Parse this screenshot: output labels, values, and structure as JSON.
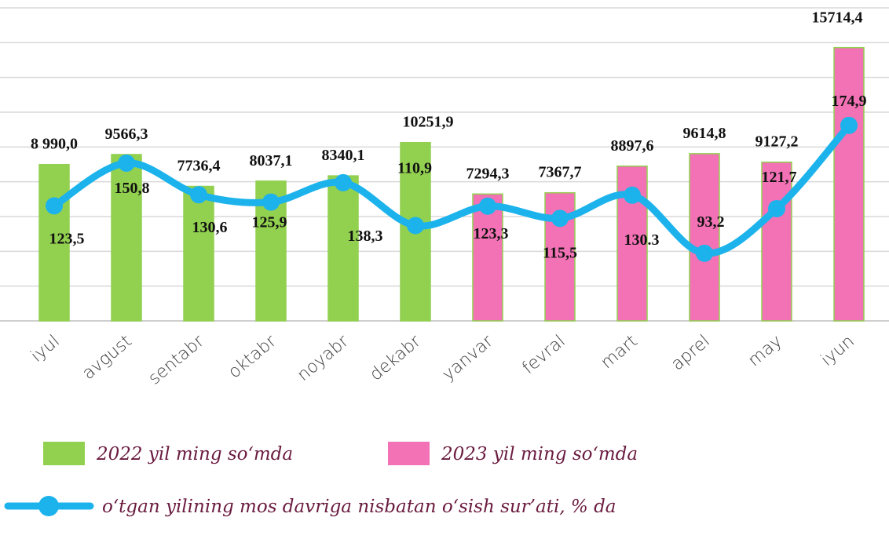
{
  "chart_data": {
    "type": "bar_line",
    "categories": [
      "iyul",
      "avgust",
      "sentabr",
      "oktabr",
      "noyabr",
      "dekabr",
      "yanvar",
      "fevral",
      "mart",
      "aprel",
      "may",
      "iyun"
    ],
    "series": [
      {
        "name": "2022 yil ming so‘mda",
        "type": "bar",
        "color": "#92d050",
        "values": [
          8990.0,
          9566.3,
          7736.4,
          8037.1,
          8340.1,
          10251.9,
          null,
          null,
          null,
          null,
          null,
          null
        ],
        "value_labels": [
          "8 990,0",
          "9566,3",
          "7736,4",
          "8037,1",
          "8340,1",
          "10251,9",
          null,
          null,
          null,
          null,
          null,
          null
        ]
      },
      {
        "name": "2023 yil ming so‘mda",
        "type": "bar",
        "color": "#f272b5",
        "values": [
          null,
          null,
          null,
          null,
          null,
          null,
          7294.3,
          7367.7,
          8897.6,
          9614.8,
          9127.2,
          15714.4
        ],
        "value_labels": [
          null,
          null,
          null,
          null,
          null,
          null,
          "7294,3",
          "7367,7",
          "8897,6",
          "9614,8",
          "9127,2",
          "15714,4"
        ]
      },
      {
        "name": "o‘tgan yilining mos davriga nisbatan o‘sish sur’ati, % da",
        "type": "line",
        "axis": "y2",
        "color": "#1cb3ec",
        "values": [
          123.5,
          150.8,
          130.6,
          125.9,
          138.3,
          110.9,
          123.3,
          115.5,
          130.3,
          93.2,
          121.7,
          174.9
        ],
        "value_labels": [
          "123,5",
          "150,8",
          "130,6",
          "125,9",
          "138,3",
          "110,9",
          "123,3",
          "115,5",
          "130.3",
          "93,2",
          "121,7",
          "174,9"
        ]
      }
    ],
    "ylim": [
      0,
      18000
    ],
    "yticks": [
      0,
      2000,
      4000,
      6000,
      8000,
      10000,
      12000,
      14000,
      16000,
      18000
    ],
    "y2lim": [
      50,
      250
    ],
    "grid": true
  }
}
